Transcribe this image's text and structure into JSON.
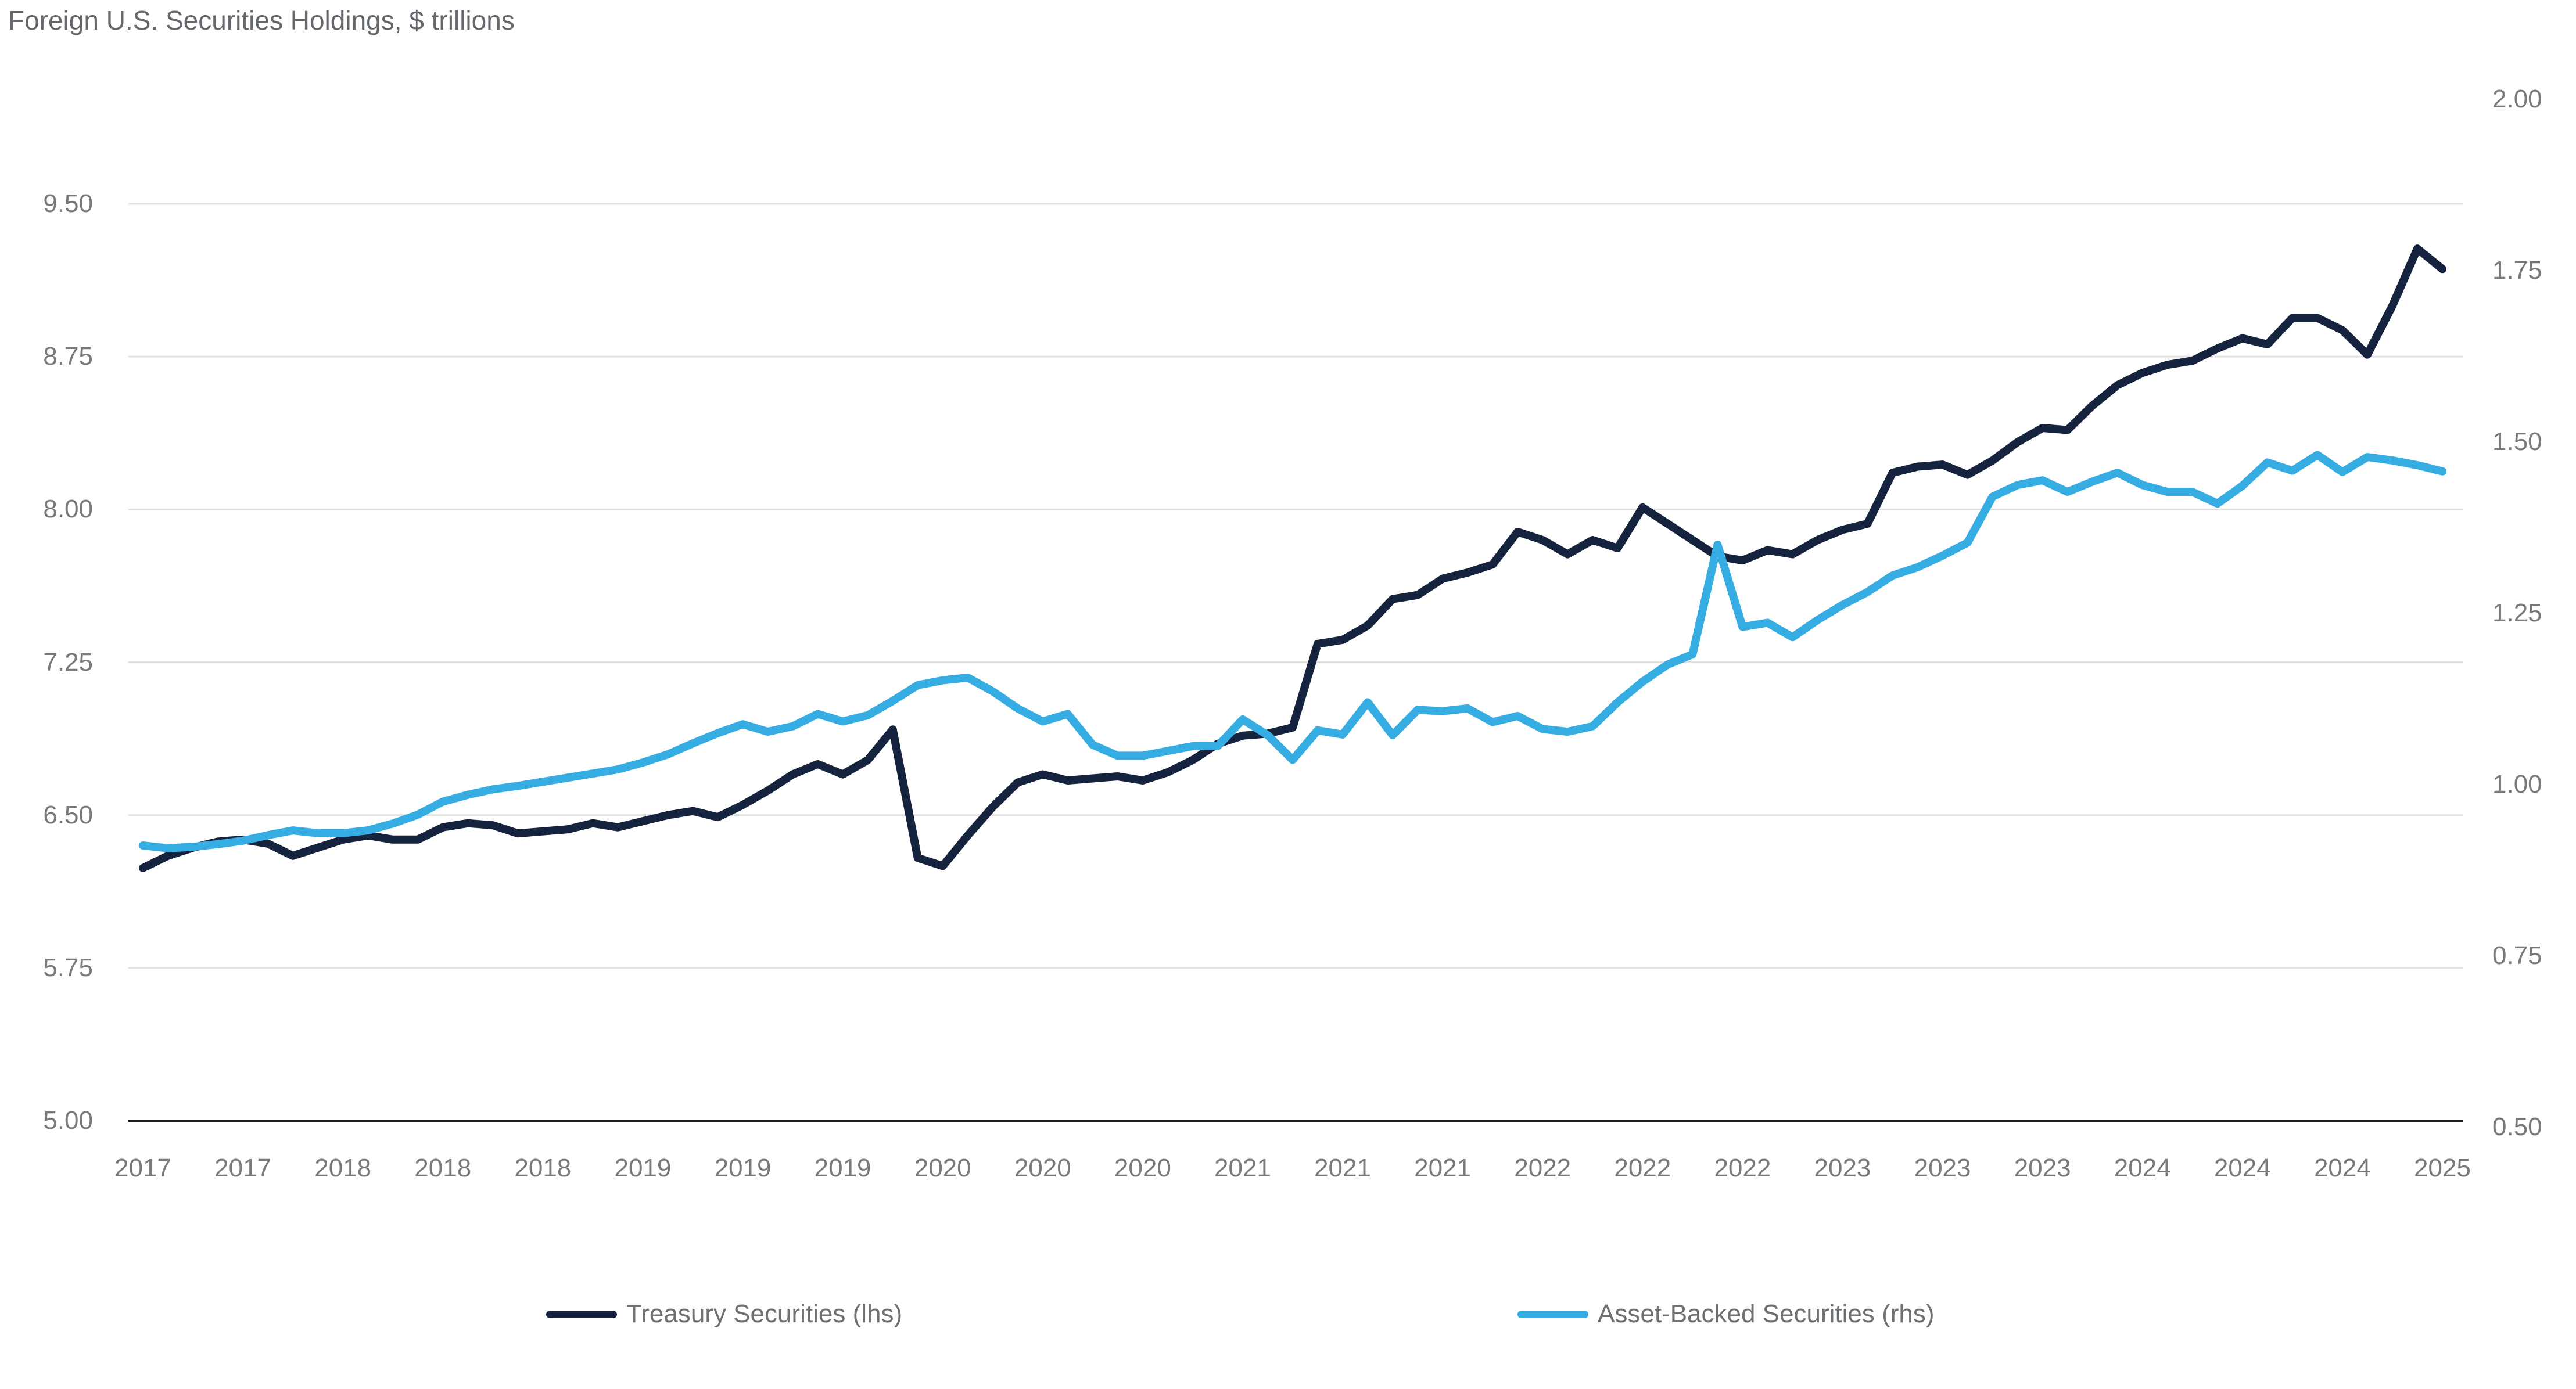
{
  "title": "Foreign U.S. Securities Holdings, $ trillions",
  "colors": {
    "treasury_line": "#16233E",
    "abs_line": "#35ADE3",
    "gridline": "#E1E1E1",
    "axis_line": "#1A1B1E",
    "label_gray": "#77797C",
    "title_gray": "#64676B"
  },
  "left_axis": {
    "labels": [
      "9.50",
      "8.75",
      "8.00",
      "7.25",
      "6.50",
      "5.75",
      "5.00"
    ],
    "values": [
      9.5,
      8.75,
      8.0,
      7.25,
      6.5,
      5.75,
      5.0
    ],
    "min": 5.0,
    "max": 9.5
  },
  "right_axis": {
    "labels": [
      "2.00",
      "1.75",
      "1.50",
      "1.25",
      "1.00",
      "0.75",
      "0.50"
    ],
    "values": [
      2.0,
      1.75,
      1.5,
      1.25,
      1.0,
      0.75,
      0.5
    ],
    "min": 0.5,
    "max": 2.0
  },
  "x_axis": {
    "tick_labels": [
      "2017",
      "2017",
      "2018",
      "2018",
      "2018",
      "2019",
      "2019",
      "2019",
      "2020",
      "2020",
      "2020",
      "2021",
      "2021",
      "2021",
      "2022",
      "2022",
      "2022",
      "2023",
      "2023",
      "2023",
      "2024",
      "2024",
      "2024",
      "2025"
    ],
    "months_per_tick": 4
  },
  "legend": [
    {
      "label": "Treasury Securities (lhs)",
      "color_key": "treasury_line"
    },
    {
      "label": "Asset-Backed Securities (rhs)",
      "color_key": "abs_line"
    }
  ],
  "chart_data": {
    "type": "line",
    "title": "Foreign U.S. Securities Holdings, $ trillions",
    "x_unit": "month",
    "start_month": "2017-05",
    "end_month": "2025-01",
    "ylim_left": [
      5.0,
      9.5
    ],
    "ylim_right": [
      0.5,
      2.0
    ],
    "grid": "horizontal",
    "legend_position": "bottom",
    "series": [
      {
        "name": "Treasury Securities (lhs)",
        "axis": "left",
        "values": [
          6.24,
          6.3,
          6.34,
          6.37,
          6.38,
          6.36,
          6.3,
          6.34,
          6.38,
          6.4,
          6.38,
          6.38,
          6.44,
          6.46,
          6.45,
          6.41,
          6.42,
          6.43,
          6.46,
          6.44,
          6.47,
          6.5,
          6.52,
          6.49,
          6.55,
          6.62,
          6.7,
          6.75,
          6.7,
          6.77,
          6.92,
          6.29,
          6.25,
          6.4,
          6.54,
          6.66,
          6.7,
          6.67,
          6.68,
          6.69,
          6.67,
          6.71,
          6.77,
          6.85,
          6.89,
          6.9,
          6.93,
          7.34,
          7.36,
          7.43,
          7.56,
          7.58,
          7.66,
          7.69,
          7.73,
          7.89,
          7.85,
          7.78,
          7.85,
          7.81,
          8.01,
          7.93,
          7.85,
          7.77,
          7.75,
          7.8,
          7.78,
          7.85,
          7.9,
          7.93,
          8.18,
          8.21,
          8.22,
          8.17,
          8.24,
          8.33,
          8.4,
          8.39,
          8.51,
          8.61,
          8.67,
          8.71,
          8.73,
          8.79,
          8.84,
          8.81,
          8.94,
          8.94,
          8.88,
          8.76,
          9.0,
          9.28,
          9.18
        ]
      },
      {
        "name": "Asset-Backed Securities (rhs)",
        "axis": "right",
        "values": [
          0.911,
          0.907,
          0.909,
          0.913,
          0.918,
          0.926,
          0.933,
          0.929,
          0.929,
          0.933,
          0.943,
          0.956,
          0.975,
          0.985,
          0.993,
          0.998,
          1.004,
          1.01,
          1.016,
          1.022,
          1.032,
          1.044,
          1.06,
          1.075,
          1.088,
          1.077,
          1.085,
          1.103,
          1.092,
          1.101,
          1.122,
          1.145,
          1.152,
          1.156,
          1.136,
          1.111,
          1.092,
          1.103,
          1.058,
          1.042,
          1.042,
          1.049,
          1.056,
          1.056,
          1.095,
          1.072,
          1.036,
          1.079,
          1.073,
          1.12,
          1.072,
          1.109,
          1.107,
          1.111,
          1.091,
          1.1,
          1.081,
          1.077,
          1.085,
          1.12,
          1.15,
          1.175,
          1.19,
          1.35,
          1.23,
          1.236,
          1.215,
          1.24,
          1.262,
          1.281,
          1.305,
          1.317,
          1.334,
          1.353,
          1.42,
          1.437,
          1.444,
          1.427,
          1.442,
          1.455,
          1.437,
          1.427,
          1.427,
          1.41,
          1.436,
          1.47,
          1.458,
          1.481,
          1.456,
          1.478,
          1.473,
          1.466,
          1.457
        ]
      }
    ]
  }
}
